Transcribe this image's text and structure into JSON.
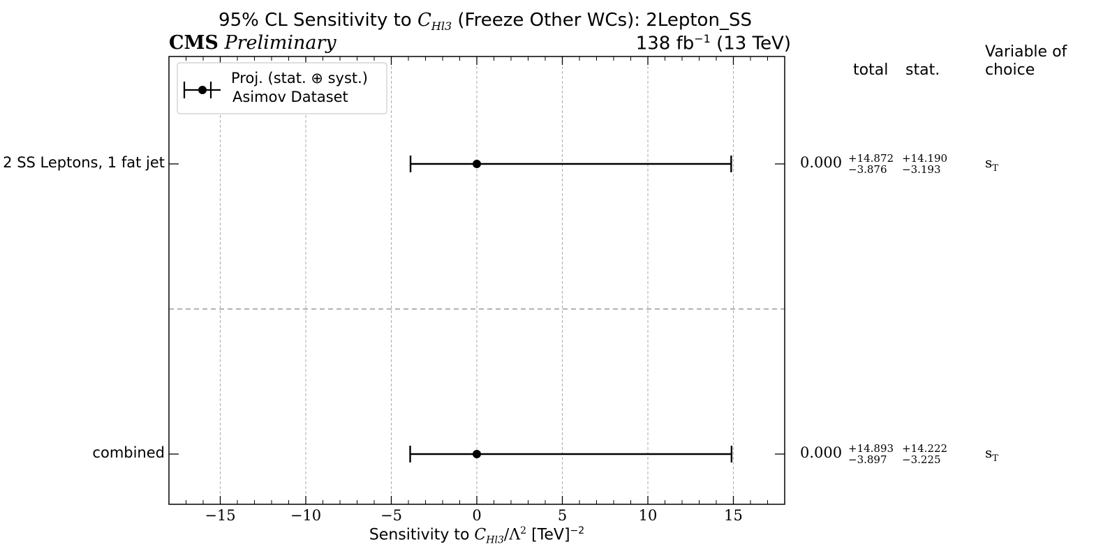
{
  "header": {
    "title": "95% CL Sensitivity to C_Hl3 (Freeze Other WCs): 2Lepton_SS",
    "title_parts": {
      "prefix": "95% CL Sensitivity to ",
      "wc_main": "C",
      "wc_sub": "Hl3",
      "suffix": " (Freeze Other WCs): 2Lepton_SS"
    },
    "experiment": "CMS",
    "status": "Preliminary",
    "lumi": "138 fb",
    "lumi_exp": "−1",
    "energy": " (13 TeV)"
  },
  "columns": {
    "total": "total",
    "stat": "stat.",
    "variable_line1": "Variable of",
    "variable_line2": "choice"
  },
  "legend": {
    "line1": "Proj. (stat. ⊕ syst.)",
    "line2": "Asimov Dataset"
  },
  "chart_data": {
    "type": "scatter",
    "title": "95% CL Sensitivity to C_Hl3 (Freeze Other WCs): 2Lepton_SS",
    "xlabel": "Sensitivity to C_Hl3/Λ² [TeV]⁻²",
    "xlabel_parts": {
      "prefix": "Sensitivity to ",
      "wc_main": "C",
      "wc_sub": "Hl3",
      "mid": "/Λ",
      "sq": "2",
      "suffix": " [TeV]",
      "exp": "−2"
    },
    "xlim": [
      -18,
      18
    ],
    "xticks": [
      -15,
      -10,
      -5,
      0,
      5,
      10,
      15
    ],
    "xtick_labels": [
      "−15",
      "−10",
      "−5",
      "0",
      "5",
      "10",
      "15"
    ],
    "grid": true,
    "legend_position": "top-left",
    "series": [
      {
        "category": "2 SS Leptons, 1 fat jet",
        "central": "0.000",
        "value": 0.0,
        "total_up": "+14.872",
        "total_down": "−3.876",
        "stat_up": "+14.190",
        "stat_down": "−3.193",
        "err_low": -3.876,
        "err_high": 14.872,
        "variable": "s",
        "variable_sub": "T"
      },
      {
        "category": "combined",
        "central": "0.000",
        "value": 0.0,
        "total_up": "+14.893",
        "total_down": "−3.897",
        "stat_up": "+14.222",
        "stat_down": "−3.225",
        "err_low": -3.897,
        "err_high": 14.893,
        "variable": "s",
        "variable_sub": "T"
      }
    ]
  }
}
